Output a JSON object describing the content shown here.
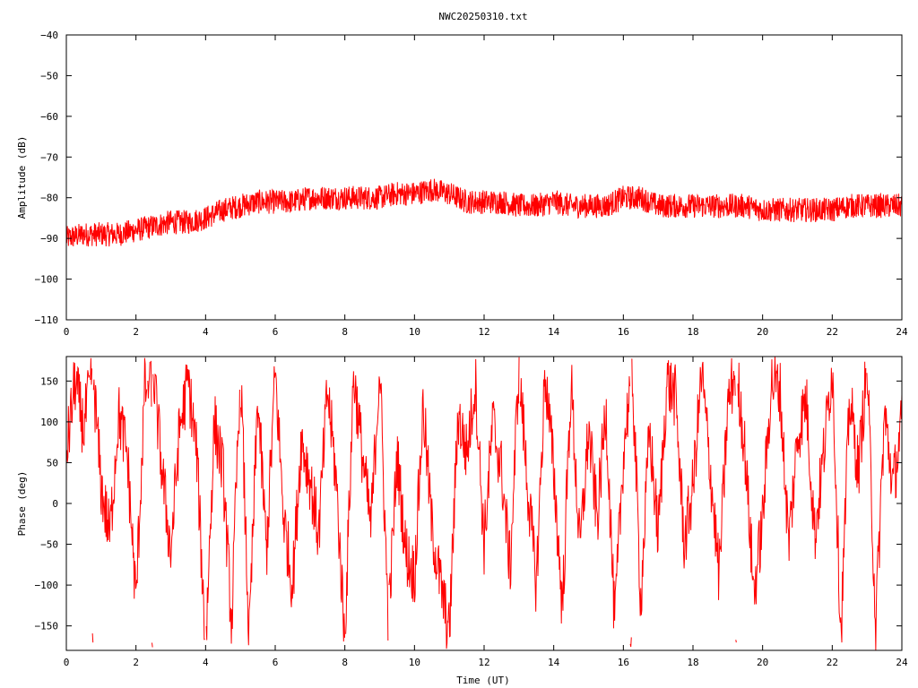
{
  "colors": {
    "trace": "#ff0000",
    "axes": "#000000",
    "background": "#ffffff"
  },
  "chart_data": [
    {
      "type": "line",
      "title": "NWC20250310.txt",
      "xlabel": "",
      "ylabel": "Amplitude (dB)",
      "xlim": [
        0,
        24
      ],
      "ylim": [
        -110,
        -40
      ],
      "grid": false,
      "x_ticks": [
        0,
        2,
        4,
        6,
        8,
        10,
        12,
        14,
        16,
        18,
        20,
        22,
        24
      ],
      "y_ticks": [
        -110,
        -100,
        -90,
        -80,
        -70,
        -60,
        -50,
        -40
      ],
      "x_tick_labels": [
        "0",
        "2",
        "4",
        "6",
        "8",
        "10",
        "12",
        "14",
        "16",
        "18",
        "20",
        "22",
        "24"
      ],
      "y_tick_labels": [
        "−110",
        "−100",
        "−90",
        "−80",
        "−70",
        "−60",
        "−50",
        "−40"
      ],
      "series": [
        {
          "x": [
            0,
            0.5,
            1,
            1.5,
            2,
            2.5,
            3,
            3.5,
            4,
            4.5,
            5,
            5.5,
            6,
            6.5,
            7,
            7.5,
            8,
            8.5,
            9,
            9.5,
            10,
            10.5,
            11,
            11.5,
            12,
            12.5,
            13,
            13.5,
            14,
            14.5,
            15,
            15.5,
            16,
            16.5,
            17,
            17.5,
            18,
            18.5,
            19,
            19.5,
            20,
            20.5,
            21,
            21.5,
            22,
            22.5,
            23,
            23.5,
            24
          ],
          "y": [
            -90,
            -89,
            -89,
            -89,
            -88,
            -87,
            -86,
            -86,
            -85,
            -83,
            -82,
            -81,
            -81,
            -81,
            -80,
            -80,
            -80,
            -80,
            -80,
            -79,
            -79,
            -78,
            -79,
            -81,
            -81,
            -81,
            -82,
            -82,
            -81,
            -82,
            -82,
            -82,
            -80,
            -80,
            -82,
            -82,
            -82,
            -82,
            -82,
            -82,
            -83,
            -83,
            -83,
            -83,
            -83,
            -82,
            -82,
            -82,
            -82
          ],
          "spread": [
            3,
            3,
            3,
            3,
            3,
            3,
            3,
            3,
            3,
            3,
            3,
            3,
            3,
            3,
            3,
            3,
            3,
            3,
            3,
            3,
            3,
            3,
            3,
            3,
            3,
            3,
            3,
            3,
            3,
            3,
            3,
            3,
            3,
            3,
            3,
            3,
            3,
            3,
            3,
            3,
            3,
            3,
            3,
            3,
            3,
            3,
            3,
            3,
            3
          ]
        }
      ]
    },
    {
      "type": "line",
      "title": "",
      "xlabel": "Time (UT)",
      "ylabel": "Phase (deg)",
      "xlim": [
        0,
        24
      ],
      "ylim": [
        -180,
        180
      ],
      "grid": false,
      "x_ticks": [
        0,
        2,
        4,
        6,
        8,
        10,
        12,
        14,
        16,
        18,
        20,
        22,
        24
      ],
      "y_ticks": [
        -150,
        -100,
        -50,
        0,
        50,
        100,
        150
      ],
      "x_tick_labels": [
        "0",
        "2",
        "4",
        "6",
        "8",
        "10",
        "12",
        "14",
        "16",
        "18",
        "20",
        "22",
        "24"
      ],
      "y_tick_labels": [
        "−150",
        "−100",
        "−50",
        "0",
        "50",
        "100",
        "150"
      ],
      "series": [
        {
          "x": [
            0,
            0.25,
            0.5,
            0.75,
            1,
            1.25,
            1.5,
            1.75,
            2,
            2.25,
            2.5,
            2.75,
            3,
            3.25,
            3.5,
            3.75,
            4,
            4.25,
            4.5,
            4.75,
            5,
            5.25,
            5.5,
            5.75,
            6,
            6.25,
            6.5,
            6.75,
            7,
            7.25,
            7.5,
            7.75,
            8,
            8.25,
            8.5,
            8.75,
            9,
            9.25,
            9.5,
            9.75,
            10,
            10.25,
            10.5,
            10.75,
            11,
            11.25,
            11.5,
            11.75,
            12,
            12.25,
            12.5,
            12.75,
            13,
            13.25,
            13.5,
            13.75,
            14,
            14.25,
            14.5,
            14.75,
            15,
            15.25,
            15.5,
            15.75,
            16,
            16.25,
            16.5,
            16.75,
            17,
            17.25,
            17.5,
            17.75,
            18,
            18.25,
            18.5,
            18.75,
            19,
            19.25,
            19.5,
            19.75,
            20,
            20.25,
            20.5,
            20.75,
            21,
            21.25,
            21.5,
            21.75,
            22,
            22.25,
            22.5,
            22.75,
            23,
            23.25,
            23.5,
            23.75,
            24
          ],
          "y": [
            60,
            150,
            90,
            170,
            20,
            -40,
            110,
            60,
            -120,
            140,
            160,
            40,
            -60,
            90,
            150,
            60,
            -180,
            100,
            40,
            -150,
            170,
            -170,
            130,
            -60,
            160,
            -20,
            -100,
            80,
            30,
            -40,
            140,
            30,
            -170,
            160,
            60,
            -30,
            170,
            -150,
            60,
            -60,
            -90,
            120,
            -30,
            -100,
            -160,
            110,
            60,
            150,
            -50,
            100,
            40,
            -80,
            170,
            20,
            -100,
            160,
            40,
            -130,
            150,
            -60,
            90,
            -20,
            120,
            -150,
            60,
            170,
            -120,
            90,
            -40,
            150,
            130,
            -50,
            20,
            160,
            40,
            -90,
            120,
            170,
            60,
            -110,
            -20,
            150,
            140,
            -50,
            80,
            130,
            -40,
            60,
            170,
            -160,
            130,
            40,
            170,
            -150,
            110,
            20,
            100
          ]
        }
      ]
    }
  ]
}
